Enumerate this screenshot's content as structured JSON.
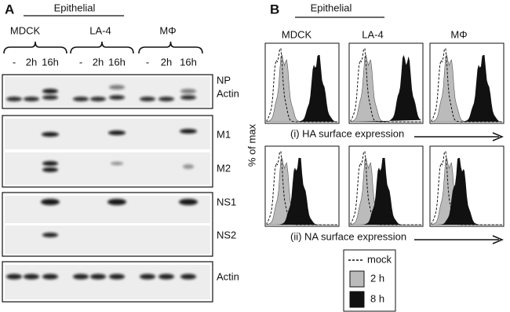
{
  "panel_a": {
    "label": "A",
    "group_label": "Epithelial",
    "cell_lines": [
      "MDCK",
      "LA-4",
      "MΦ"
    ],
    "lanes": [
      "-",
      "2h",
      "16h",
      "-",
      "2h",
      "16h",
      "-",
      "2h",
      "16h"
    ],
    "blot_labels": [
      "NP",
      "Actin",
      "M1",
      "M2",
      "NS1",
      "NS2",
      "Actin"
    ]
  },
  "panel_b": {
    "label": "B",
    "group_label": "Epithelial",
    "cell_lines": [
      "MDCK",
      "LA-4",
      "MΦ"
    ],
    "y_label": "% of max",
    "rows": [
      "(i) HA surface expression",
      "(ii) NA surface expression"
    ],
    "legend": [
      "mock",
      "2 h",
      "8 h"
    ]
  }
}
